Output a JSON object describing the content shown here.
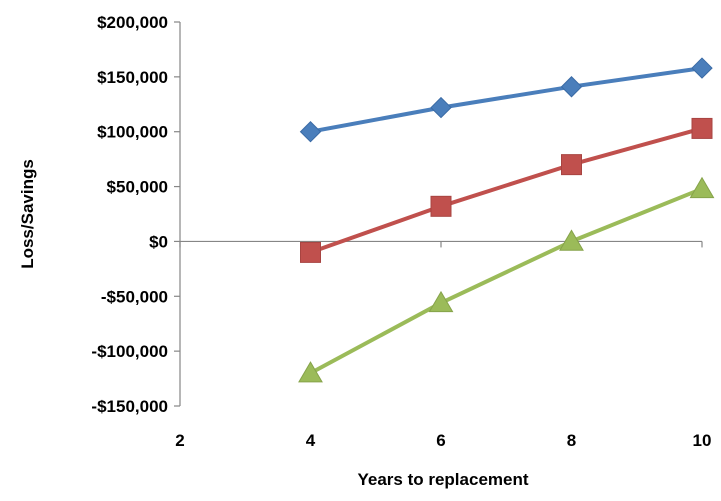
{
  "chart_data": {
    "type": "line",
    "title": "",
    "xlabel": "Years to replacement",
    "ylabel": "Loss/Savings",
    "xlim": [
      2,
      10
    ],
    "ylim": [
      -150000,
      200000
    ],
    "x_ticks": [
      2,
      4,
      6,
      8,
      10
    ],
    "x_tick_labels": [
      "2",
      "4",
      "6",
      "8",
      "10"
    ],
    "y_ticks": [
      200000,
      150000,
      100000,
      50000,
      0,
      -50000,
      -100000,
      -150000
    ],
    "y_tick_labels": [
      "$200,000",
      "$150,000",
      "$100,000",
      "$50,000",
      "$0",
      "-$50,000",
      "-$100,000",
      "-$150,000"
    ],
    "grid": false,
    "legend": "none",
    "series": [
      {
        "marker": "diamond",
        "color": "#4a7ebb",
        "x": [
          4,
          6,
          8,
          10
        ],
        "values": [
          100000,
          122000,
          141000,
          158000
        ]
      },
      {
        "marker": "square",
        "color": "#c0504d",
        "x": [
          4,
          6,
          8,
          10
        ],
        "values": [
          -10000,
          32000,
          70000,
          103000
        ]
      },
      {
        "marker": "triangle",
        "color": "#9bbb59",
        "x": [
          4,
          6,
          8,
          10
        ],
        "values": [
          -120000,
          -56000,
          0,
          48000
        ]
      }
    ]
  }
}
